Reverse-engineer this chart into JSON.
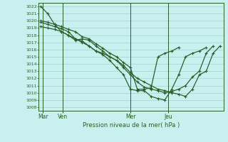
{
  "title": "",
  "xlabel": "Pression niveau de la mer( hPa )",
  "bg_color": "#c8f0ee",
  "grid_color": "#9fd4d0",
  "line_color": "#2a5f2a",
  "ylim": [
    1007.5,
    1022.5
  ],
  "xlim": [
    -0.3,
    26.5
  ],
  "xtick_labels": [
    "Mar",
    "Ven",
    "Mer",
    "Jeu"
  ],
  "xtick_positions": [
    0.3,
    3.2,
    13.0,
    18.5
  ],
  "vline_positions": [
    0.3,
    3.2,
    13.0,
    18.5
  ],
  "ytick_values": [
    1008,
    1009,
    1010,
    1011,
    1012,
    1013,
    1014,
    1015,
    1016,
    1017,
    1018,
    1019,
    1020,
    1021,
    1022
  ],
  "series": [
    [
      1022.0,
      1021.0,
      1019.5,
      1019.2,
      1018.8,
      1018.5,
      1017.8,
      1017.5,
      1016.8,
      1016.2,
      1015.5,
      1015.0,
      1014.2,
      1013.5,
      1010.5,
      1010.5,
      1010.7,
      1015.0,
      1015.5,
      1015.8,
      1016.3
    ],
    [
      1019.8,
      1019.5,
      1019.2,
      1018.9,
      1018.5,
      1017.5,
      1017.2,
      1016.5,
      1015.8,
      1015.3,
      1014.5,
      1013.5,
      1012.5,
      1010.5,
      1010.3,
      1010.3,
      1009.5,
      1009.2,
      1009.0,
      1010.5,
      1012.5,
      1015.0,
      1015.5,
      1015.8,
      1016.3
    ],
    [
      1020.0,
      1019.8,
      1019.5,
      1018.5,
      1018.0,
      1017.3,
      1017.5,
      1017.3,
      1016.5,
      1015.8,
      1015.0,
      1014.5,
      1013.8,
      1012.8,
      1012.0,
      1011.5,
      1011.0,
      1010.5,
      1010.3,
      1010.0,
      1009.8,
      1009.5,
      1010.5,
      1012.5,
      1013.0,
      1015.5,
      1016.5
    ],
    [
      1019.2,
      1019.0,
      1018.8,
      1018.5,
      1018.0,
      1017.5,
      1017.0,
      1016.5,
      1015.8,
      1015.5,
      1015.0,
      1014.5,
      1013.5,
      1012.5,
      1011.5,
      1010.8,
      1010.5,
      1010.3,
      1010.0,
      1010.2,
      1010.5,
      1011.0,
      1012.2,
      1013.0,
      1015.5,
      1016.5
    ]
  ],
  "series_x": [
    [
      0,
      1,
      2,
      3,
      4,
      5,
      6,
      7,
      8,
      9,
      10,
      11,
      12,
      13,
      14,
      15,
      16,
      17,
      18,
      19,
      20
    ],
    [
      0,
      1,
      2,
      3,
      4,
      5,
      6,
      7,
      8,
      9,
      10,
      11,
      12,
      13,
      14,
      15,
      16,
      17,
      18,
      19,
      20,
      21,
      22,
      23,
      24
    ],
    [
      0,
      1,
      2,
      3,
      4,
      5,
      6,
      7,
      8,
      9,
      10,
      11,
      12,
      13,
      14,
      15,
      16,
      17,
      18,
      19,
      20,
      21,
      22,
      23,
      24,
      25,
      26
    ],
    [
      0,
      1,
      2,
      3,
      4,
      5,
      6,
      7,
      8,
      9,
      10,
      11,
      12,
      13,
      14,
      15,
      16,
      17,
      18,
      19,
      20,
      21,
      22,
      23,
      24,
      25
    ]
  ]
}
